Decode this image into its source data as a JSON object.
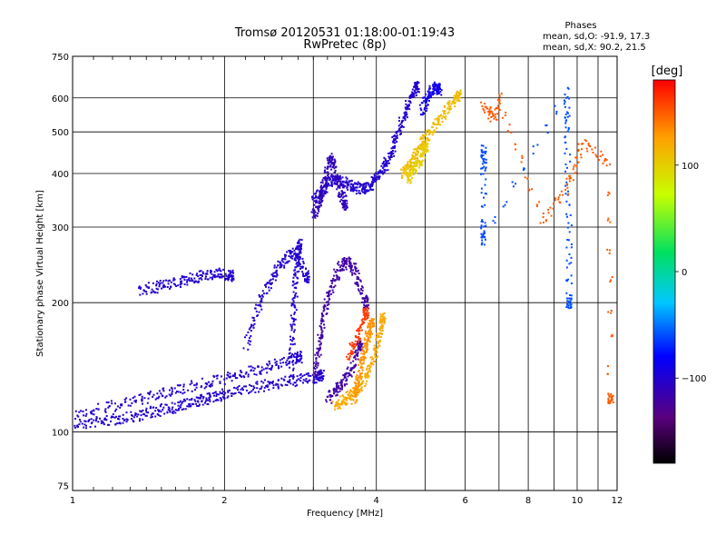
{
  "chart_data": {
    "type": "scatter",
    "title": "Tromsø 20120531 01:18:00-01:19:43",
    "subtitle": "RwPretec (8p)",
    "xlabel": "Frequency [MHz]",
    "ylabel": "Stationary phase Virtual Height [km]",
    "x_scale": "log",
    "y_scale": "log",
    "xlim": [
      1,
      12
    ],
    "ylim": [
      73,
      750
    ],
    "x_ticks": [
      1,
      2,
      4,
      6,
      8,
      10,
      12
    ],
    "y_ticks": [
      75,
      100,
      200,
      300,
      400,
      500,
      600,
      750
    ],
    "grid": true,
    "phase_stats": {
      "heading": "Phases",
      "o_line": "mean, sd,O: -91.9, 17.3",
      "x_line": "mean, sd,X:  90.2, 21.5"
    },
    "colorbar": {
      "label": "[deg]",
      "range": [
        -180,
        180
      ],
      "ticks": [
        100,
        0,
        -100
      ],
      "tick_labels": [
        "100",
        "0",
        "−100"
      ]
    },
    "traces": [
      {
        "phase": -100,
        "points": [
          [
            1.0,
            104
          ],
          [
            1.1,
            106
          ],
          [
            1.2,
            107
          ],
          [
            1.3,
            109
          ],
          [
            1.4,
            111
          ],
          [
            1.5,
            113
          ],
          [
            1.6,
            115
          ],
          [
            1.7,
            117
          ],
          [
            1.8,
            119
          ],
          [
            1.9,
            121
          ],
          [
            2.0,
            123
          ],
          [
            2.2,
            126
          ],
          [
            2.4,
            129
          ],
          [
            2.6,
            131
          ],
          [
            2.8,
            133
          ],
          [
            3.0,
            134
          ],
          [
            3.1,
            136
          ]
        ]
      },
      {
        "phase": -100,
        "points": [
          [
            1.0,
            110
          ],
          [
            1.15,
            114
          ],
          [
            1.3,
            118
          ],
          [
            1.45,
            122
          ],
          [
            1.6,
            126
          ],
          [
            1.8,
            130
          ],
          [
            2.0,
            134
          ],
          [
            2.2,
            138
          ],
          [
            2.4,
            142
          ],
          [
            2.6,
            146
          ],
          [
            2.8,
            150
          ]
        ]
      },
      {
        "phase": -100,
        "points": [
          [
            1.35,
            215
          ],
          [
            1.45,
            218
          ],
          [
            1.55,
            222
          ],
          [
            1.65,
            226
          ],
          [
            1.75,
            230
          ],
          [
            1.85,
            234
          ],
          [
            1.95,
            236
          ],
          [
            2.05,
            232
          ]
        ]
      },
      {
        "phase": -100,
        "points": [
          [
            2.2,
            160
          ],
          [
            2.3,
            190
          ],
          [
            2.4,
            215
          ],
          [
            2.5,
            235
          ],
          [
            2.6,
            250
          ],
          [
            2.7,
            262
          ],
          [
            2.8,
            250
          ],
          [
            2.9,
            230
          ]
        ]
      },
      {
        "phase": -100,
        "points": [
          [
            2.7,
            140
          ],
          [
            2.72,
            170
          ],
          [
            2.74,
            200
          ],
          [
            2.76,
            230
          ],
          [
            2.78,
            260
          ],
          [
            2.8,
            275
          ]
        ]
      },
      {
        "phase": -120,
        "points": [
          [
            3.0,
            135
          ],
          [
            3.05,
            150
          ],
          [
            3.1,
            170
          ],
          [
            3.15,
            190
          ],
          [
            3.2,
            210
          ],
          [
            3.3,
            230
          ],
          [
            3.4,
            245
          ],
          [
            3.5,
            250
          ],
          [
            3.6,
            240
          ],
          [
            3.7,
            220
          ],
          [
            3.8,
            200
          ]
        ]
      },
      {
        "phase": -120,
        "points": [
          [
            3.2,
            120
          ],
          [
            3.3,
            125
          ],
          [
            3.4,
            130
          ],
          [
            3.5,
            135
          ],
          [
            3.6,
            145
          ],
          [
            3.7,
            160
          ]
        ]
      },
      {
        "phase": -100,
        "points": [
          [
            3.0,
            345
          ],
          [
            3.1,
            365
          ],
          [
            3.2,
            380
          ],
          [
            3.3,
            390
          ],
          [
            3.4,
            385
          ],
          [
            3.5,
            380
          ],
          [
            3.6,
            375
          ],
          [
            3.7,
            370
          ],
          [
            3.8,
            372
          ],
          [
            3.9,
            380
          ],
          [
            4.0,
            395
          ],
          [
            4.1,
            410
          ],
          [
            4.2,
            430
          ],
          [
            4.3,
            460
          ],
          [
            4.4,
            500
          ],
          [
            4.5,
            540
          ],
          [
            4.6,
            580
          ],
          [
            4.7,
            610
          ],
          [
            4.8,
            640
          ]
        ]
      },
      {
        "phase": -110,
        "points": [
          [
            3.0,
            320
          ],
          [
            3.05,
            340
          ],
          [
            3.1,
            360
          ],
          [
            3.15,
            390
          ],
          [
            3.2,
            420
          ],
          [
            3.25,
            440
          ],
          [
            3.3,
            410
          ],
          [
            3.35,
            380
          ],
          [
            3.4,
            360
          ],
          [
            3.45,
            340
          ]
        ]
      },
      {
        "phase": -90,
        "points": [
          [
            4.9,
            560
          ],
          [
            5.0,
            590
          ],
          [
            5.1,
            620
          ],
          [
            5.2,
            640
          ],
          [
            5.3,
            630
          ]
        ]
      },
      {
        "phase": 120,
        "points": [
          [
            3.3,
            115
          ],
          [
            3.4,
            118
          ],
          [
            3.5,
            121
          ],
          [
            3.6,
            124
          ],
          [
            3.7,
            128
          ],
          [
            3.8,
            135
          ],
          [
            3.9,
            145
          ],
          [
            4.0,
            160
          ],
          [
            4.05,
            175
          ],
          [
            4.1,
            185
          ]
        ]
      },
      {
        "phase": 130,
        "points": [
          [
            3.6,
            120
          ],
          [
            3.65,
            130
          ],
          [
            3.7,
            140
          ],
          [
            3.75,
            150
          ],
          [
            3.8,
            160
          ],
          [
            3.85,
            170
          ],
          [
            3.9,
            180
          ]
        ]
      },
      {
        "phase": 110,
        "points": [
          [
            4.5,
            400
          ],
          [
            4.6,
            415
          ],
          [
            4.7,
            430
          ],
          [
            4.8,
            450
          ],
          [
            4.9,
            470
          ],
          [
            5.0,
            490
          ],
          [
            5.2,
            520
          ],
          [
            5.4,
            550
          ],
          [
            5.6,
            580
          ],
          [
            5.8,
            610
          ]
        ]
      },
      {
        "phase": 100,
        "points": [
          [
            4.6,
            390
          ],
          [
            4.7,
            405
          ],
          [
            4.8,
            420
          ],
          [
            4.9,
            440
          ],
          [
            5.0,
            460
          ]
        ]
      },
      {
        "phase": 160,
        "points": [
          [
            3.5,
            150
          ],
          [
            3.6,
            160
          ],
          [
            3.7,
            175
          ],
          [
            3.8,
            190
          ]
        ]
      },
      {
        "phase": -60,
        "points": [
          [
            6.5,
            420
          ],
          [
            6.5,
            460
          ],
          [
            6.5,
            300
          ],
          [
            6.5,
            280
          ],
          [
            9.5,
            620
          ],
          [
            9.5,
            500
          ],
          [
            9.6,
            300
          ],
          [
            9.6,
            200
          ]
        ]
      },
      {
        "phase": 150,
        "points": [
          [
            6.5,
            580
          ],
          [
            6.8,
            540
          ],
          [
            7.0,
            600
          ],
          [
            8.5,
            310
          ],
          [
            9.6,
            380
          ],
          [
            10.2,
            470
          ],
          [
            11.5,
            430
          ],
          [
            11.6,
            120
          ]
        ]
      }
    ]
  }
}
